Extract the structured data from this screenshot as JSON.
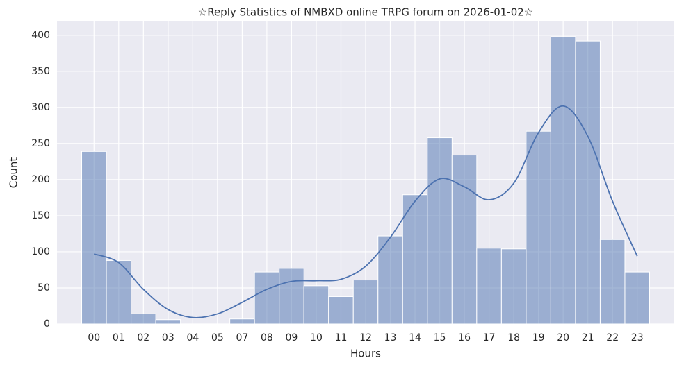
{
  "chart_data": {
    "type": "histogram",
    "title": "☆Reply Statistics of NMBXD online TRPG forum on 2026-01-02☆",
    "x_label": "Hours",
    "y_label": "Count",
    "categories": [
      "00",
      "01",
      "02",
      "03",
      "04",
      "05",
      "07",
      "08",
      "09",
      "10",
      "11",
      "12",
      "13",
      "14",
      "15",
      "16",
      "17",
      "18",
      "19",
      "20",
      "21",
      "22",
      "23"
    ],
    "values": [
      239,
      88,
      14,
      6,
      0,
      0,
      7,
      72,
      77,
      53,
      38,
      61,
      122,
      179,
      258,
      234,
      105,
      104,
      267,
      398,
      392,
      117,
      72
    ],
    "color": "#4c72b0",
    "kde": {
      "values": [
        97,
        85,
        48,
        20,
        9,
        14,
        30,
        48,
        59,
        60,
        62,
        80,
        120,
        170,
        201,
        190,
        172,
        195,
        265,
        302,
        260,
        170,
        94
      ],
      "color": "#4c72b0"
    },
    "ylim": [
      0,
      420
    ],
    "yticks": [
      0,
      50,
      100,
      150,
      200,
      250,
      300,
      350,
      400
    ],
    "grid": true
  }
}
